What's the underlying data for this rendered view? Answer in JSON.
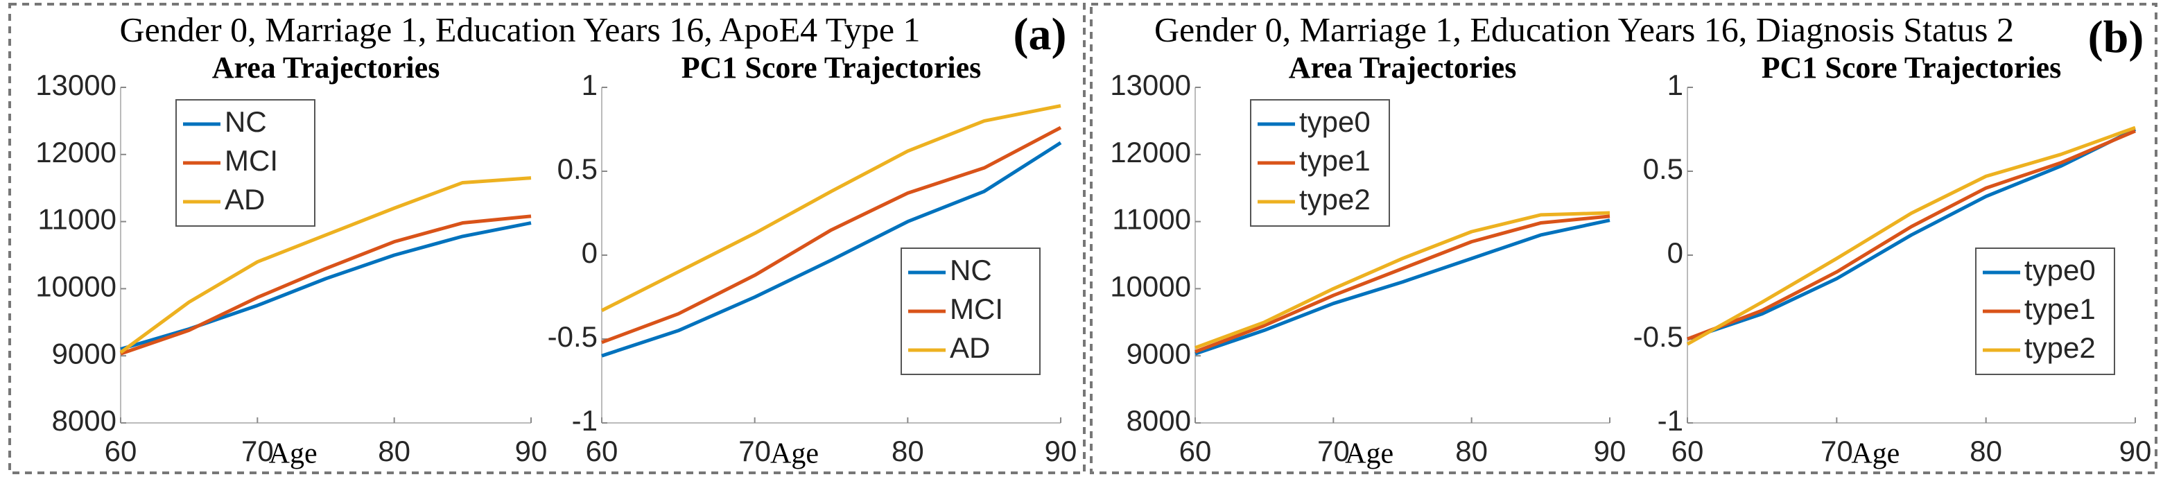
{
  "panels": [
    {
      "title": "Gender 0, Marriage 1, Education Years 16, ApoE4 Type 1",
      "label": "(a)"
    },
    {
      "title": "Gender 0, Marriage 1, Education Years 16, Diagnosis Status 2",
      "label": "(b)"
    }
  ],
  "chart_data": [
    {
      "type": "line",
      "title": "Area Trajectories",
      "xlabel": "Age",
      "x": [
        60,
        65,
        70,
        75,
        80,
        85,
        90
      ],
      "xlim": [
        60,
        90
      ],
      "xticks": [
        60,
        70,
        80,
        90
      ],
      "ylim": [
        8000,
        13000
      ],
      "yticks": [
        8000,
        9000,
        10000,
        11000,
        12000,
        13000
      ],
      "legend": "upper left",
      "series": [
        {
          "name": "NC",
          "color": "#0072BD",
          "values": [
            9100,
            9400,
            9750,
            10150,
            10500,
            10780,
            10980
          ]
        },
        {
          "name": "MCI",
          "color": "#D95319",
          "values": [
            9030,
            9380,
            9870,
            10300,
            10700,
            10980,
            11080
          ]
        },
        {
          "name": "AD",
          "color": "#EDB120",
          "values": [
            9050,
            9800,
            10400,
            10800,
            11200,
            11580,
            11650
          ]
        }
      ]
    },
    {
      "type": "line",
      "title": "PC1 Score Trajectories",
      "xlabel": "Age",
      "x": [
        60,
        65,
        70,
        75,
        80,
        85,
        90
      ],
      "xlim": [
        60,
        90
      ],
      "xticks": [
        60,
        70,
        80,
        90
      ],
      "ylim": [
        -1,
        1
      ],
      "yticks": [
        -1,
        -0.5,
        0,
        0.5,
        1
      ],
      "legend": "lower right",
      "series": [
        {
          "name": "NC",
          "color": "#0072BD",
          "values": [
            -0.6,
            -0.45,
            -0.25,
            -0.03,
            0.2,
            0.38,
            0.67
          ]
        },
        {
          "name": "MCI",
          "color": "#D95319",
          "values": [
            -0.52,
            -0.35,
            -0.12,
            0.15,
            0.37,
            0.52,
            0.76
          ]
        },
        {
          "name": "AD",
          "color": "#EDB120",
          "values": [
            -0.33,
            -0.1,
            0.13,
            0.38,
            0.62,
            0.8,
            0.89
          ]
        }
      ]
    },
    {
      "type": "line",
      "title": "Area Trajectories",
      "xlabel": "Age",
      "x": [
        60,
        65,
        70,
        75,
        80,
        85,
        90
      ],
      "xlim": [
        60,
        90
      ],
      "xticks": [
        60,
        70,
        80,
        90
      ],
      "ylim": [
        8000,
        13000
      ],
      "yticks": [
        8000,
        9000,
        10000,
        11000,
        12000,
        13000
      ],
      "legend": "upper left",
      "series": [
        {
          "name": "type0",
          "color": "#0072BD",
          "values": [
            9030,
            9380,
            9780,
            10100,
            10450,
            10800,
            11020
          ]
        },
        {
          "name": "type1",
          "color": "#D95319",
          "values": [
            9060,
            9450,
            9900,
            10300,
            10700,
            10980,
            11080
          ]
        },
        {
          "name": "type2",
          "color": "#EDB120",
          "values": [
            9120,
            9500,
            10000,
            10450,
            10850,
            11100,
            11130
          ]
        }
      ]
    },
    {
      "type": "line",
      "title": "PC1 Score Trajectories",
      "xlabel": "Age",
      "x": [
        60,
        65,
        70,
        75,
        80,
        85,
        90
      ],
      "xlim": [
        60,
        90
      ],
      "xticks": [
        60,
        70,
        80,
        90
      ],
      "ylim": [
        -1,
        1
      ],
      "yticks": [
        -1,
        -0.5,
        0,
        0.5,
        1
      ],
      "legend": "lower right",
      "series": [
        {
          "name": "type0",
          "color": "#0072BD",
          "values": [
            -0.5,
            -0.35,
            -0.14,
            0.12,
            0.35,
            0.53,
            0.75
          ]
        },
        {
          "name": "type1",
          "color": "#D95319",
          "values": [
            -0.5,
            -0.33,
            -0.1,
            0.17,
            0.4,
            0.55,
            0.74
          ]
        },
        {
          "name": "type2",
          "color": "#EDB120",
          "values": [
            -0.53,
            -0.28,
            -0.02,
            0.25,
            0.47,
            0.6,
            0.76
          ]
        }
      ]
    }
  ]
}
